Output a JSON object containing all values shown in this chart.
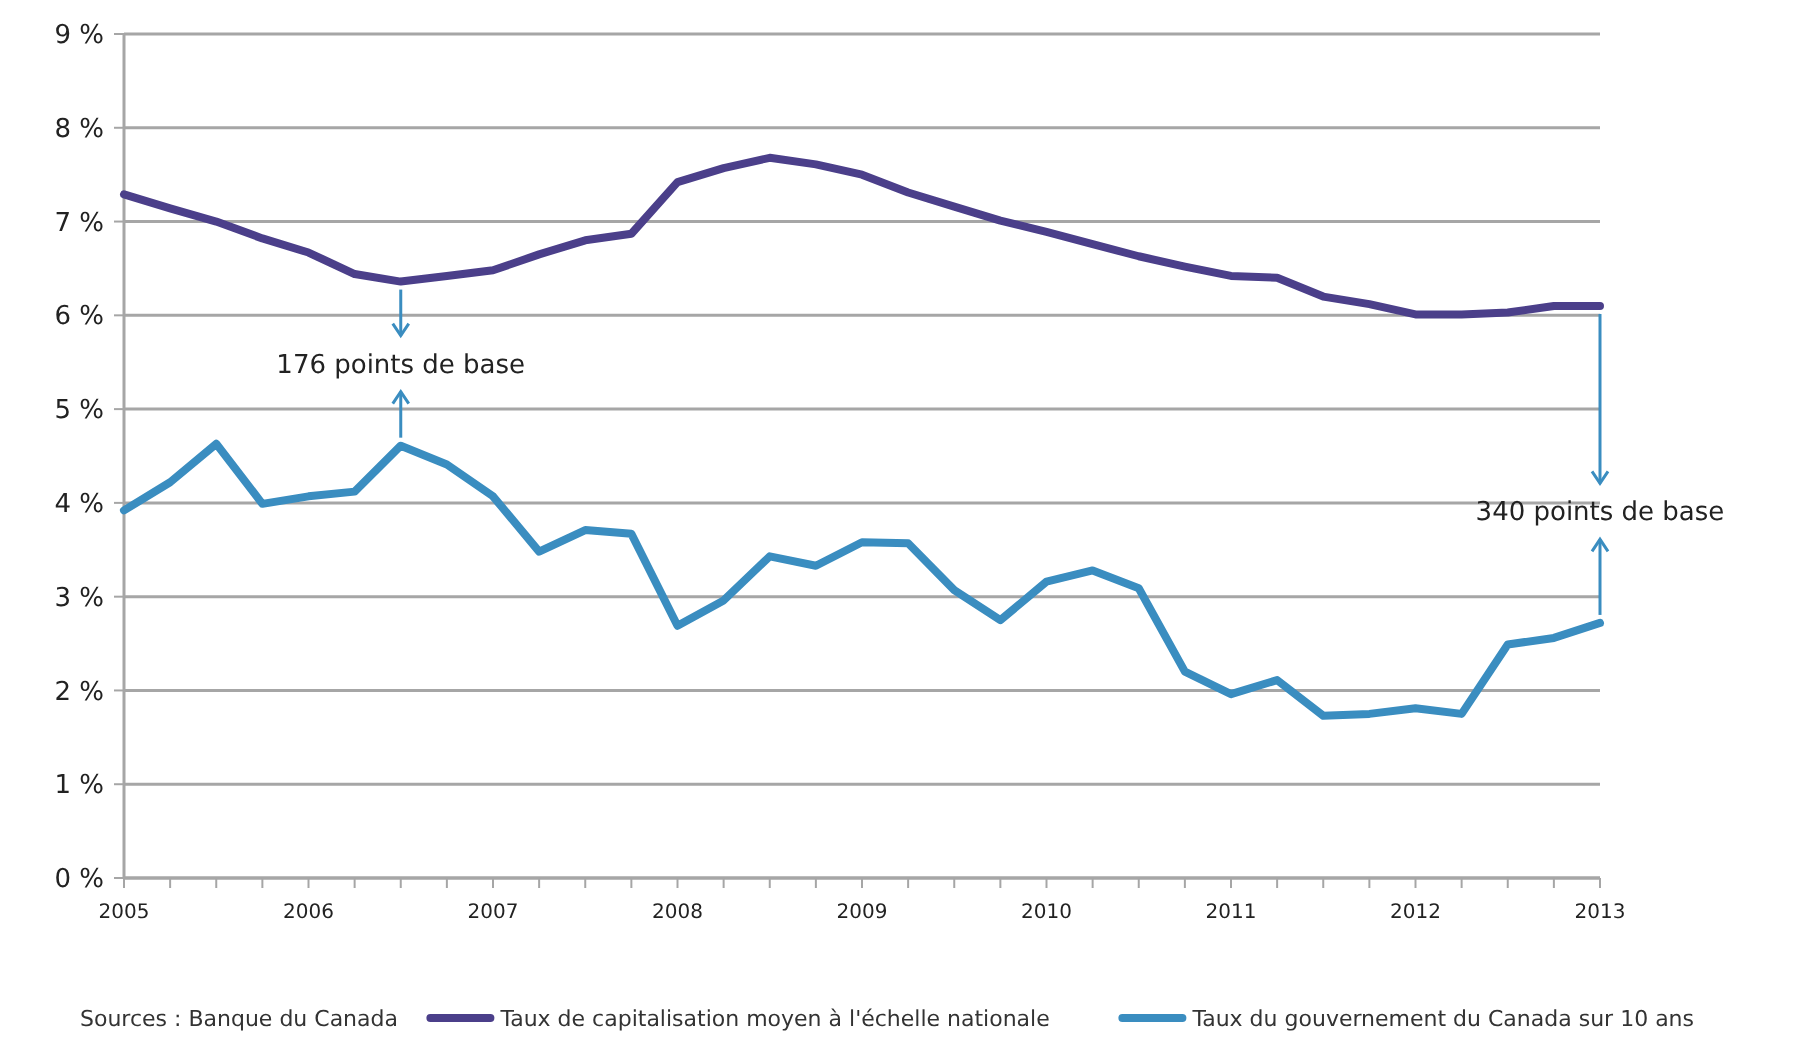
{
  "chart_data": {
    "type": "line",
    "x": [
      2005,
      2005.25,
      2005.5,
      2005.75,
      2006,
      2006.25,
      2006.5,
      2006.75,
      2007,
      2007.25,
      2007.5,
      2007.75,
      2008,
      2008.25,
      2008.5,
      2008.75,
      2009,
      2009.25,
      2009.5,
      2009.75,
      2010,
      2010.25,
      2010.5,
      2010.75,
      2011,
      2011.25,
      2011.5,
      2011.75,
      2012,
      2012.25,
      2012.5,
      2012.75,
      2013
    ],
    "series": [
      {
        "name": "Taux de capitalisation moyen à l'échelle nationale",
        "color": "#4b3f8a",
        "values": [
          7.29,
          7.14,
          7.0,
          6.82,
          6.67,
          6.44,
          6.36,
          6.42,
          6.48,
          6.65,
          6.8,
          6.87,
          7.42,
          7.57,
          7.68,
          7.61,
          7.5,
          7.31,
          7.16,
          7.01,
          6.89,
          6.76,
          6.63,
          6.52,
          6.42,
          6.4,
          6.2,
          6.12,
          6.01,
          6.01,
          6.03,
          6.1,
          6.1
        ]
      },
      {
        "name": "Taux du gouvernement du Canada sur 10 ans",
        "color": "#3a8dc0",
        "values": [
          3.92,
          4.22,
          4.63,
          3.99,
          4.07,
          4.12,
          4.61,
          4.41,
          4.07,
          3.48,
          3.71,
          3.67,
          2.69,
          2.96,
          3.43,
          3.33,
          3.58,
          3.57,
          3.07,
          2.75,
          3.16,
          3.28,
          3.09,
          2.2,
          1.96,
          2.11,
          1.73,
          1.75,
          1.81,
          1.75,
          2.49,
          2.56,
          2.72
        ]
      }
    ],
    "xlim": [
      2005,
      2013
    ],
    "xticks": [
      2005,
      {
        "value": 2005.25,
        "label": null
      },
      {
        "value": 2005.5,
        "label": null
      },
      {
        "value": 2005.75,
        "label": null
      },
      2006,
      {
        "value": 2006.25,
        "label": null
      },
      {
        "value": 2006.5,
        "label": null
      },
      {
        "value": 2006.75,
        "label": null
      },
      2007,
      {
        "value": 2007.25,
        "label": null
      },
      {
        "value": 2007.5,
        "label": null
      },
      {
        "value": 2007.75,
        "label": null
      },
      2008,
      {
        "value": 2008.25,
        "label": null
      },
      {
        "value": 2008.5,
        "label": null
      },
      {
        "value": 2008.75,
        "label": null
      },
      2009,
      {
        "value": 2009.25,
        "label": null
      },
      {
        "value": 2009.5,
        "label": null
      },
      {
        "value": 2009.75,
        "label": null
      },
      2010,
      {
        "value": 2010.25,
        "label": null
      },
      {
        "value": 2010.5,
        "label": null
      },
      {
        "value": 2010.75,
        "label": null
      },
      2011,
      {
        "value": 2011.25,
        "label": null
      },
      {
        "value": 2011.5,
        "label": null
      },
      {
        "value": 2011.75,
        "label": null
      },
      2012,
      {
        "value": 2012.25,
        "label": null
      },
      {
        "value": 2012.5,
        "label": null
      },
      {
        "value": 2012.75,
        "label": null
      },
      2013
    ],
    "ylim": [
      0,
      9
    ],
    "yticks": [
      {
        "value": 0,
        "label": "0 %"
      },
      {
        "value": 1,
        "label": "1 %"
      },
      {
        "value": 2,
        "label": "2 %"
      },
      {
        "value": 3,
        "label": "3 %"
      },
      {
        "value": 4,
        "label": "4 %"
      },
      {
        "value": 5,
        "label": "5 %"
      },
      {
        "value": 6,
        "label": "6 %"
      },
      {
        "value": 7,
        "label": "7 %"
      },
      {
        "value": 8,
        "label": "8 %"
      },
      {
        "value": 9,
        "label": "9 %"
      }
    ],
    "grid": "y",
    "legend": "bottom",
    "marker": "none",
    "line_style": "solid",
    "annotations": [
      "176 points de base",
      "340 points de base",
      "Sources : Banque du Canada"
    ]
  }
}
